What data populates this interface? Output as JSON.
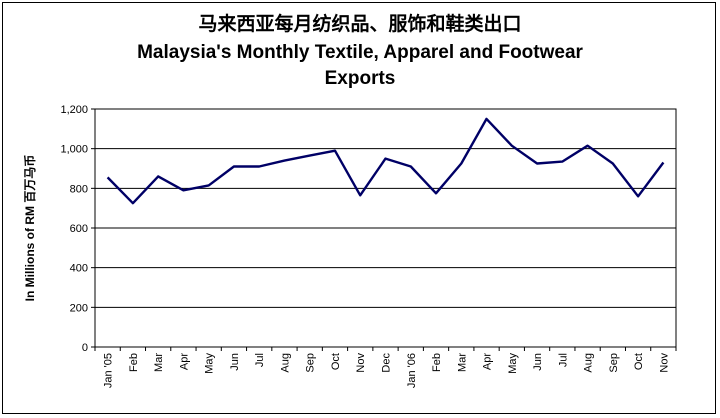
{
  "chart_data": {
    "type": "line",
    "title_zh": "马来西亚每月纺织品、服饰和鞋类出口",
    "title_en_line1": "Malaysia's Monthly Textile, Apparel and Footwear",
    "title_en_line2": "Exports",
    "ylabel": "In Millions of RM 百万马币",
    "xlabel": "",
    "ylim": [
      0,
      1200
    ],
    "yticks": [
      "0",
      "200",
      "400",
      "600",
      "800",
      "1,000",
      "1,200"
    ],
    "ytick_values": [
      0,
      200,
      400,
      600,
      800,
      1000,
      1200
    ],
    "grid": true,
    "legend": "none",
    "categories": [
      "Jan '05",
      "Feb",
      "Mar",
      "Apr",
      "May",
      "Jun",
      "Jul",
      "Aug",
      "Sep",
      "Oct",
      "Nov",
      "Dec",
      "Jan '06",
      "Feb",
      "Mar",
      "Apr",
      "May",
      "Jun",
      "Jul",
      "Aug",
      "Sep",
      "Oct",
      "Nov"
    ],
    "series": [
      {
        "values": [
          855,
          725,
          860,
          790,
          815,
          910,
          910,
          940,
          965,
          990,
          765,
          950,
          910,
          775,
          925,
          1150,
          1015,
          925,
          935,
          1015,
          925,
          760,
          930
        ],
        "color": "#000066"
      }
    ]
  }
}
